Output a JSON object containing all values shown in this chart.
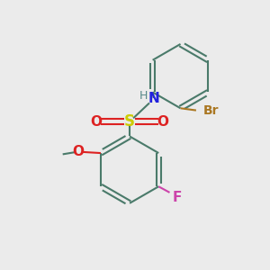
{
  "background_color": "#ebebeb",
  "bond_color": "#4a7a6a",
  "bond_width": 1.5,
  "atom_colors": {
    "S": "#cccc00",
    "O": "#dd2222",
    "N": "#2222dd",
    "H": "#558888",
    "Br": "#aa7722",
    "F": "#cc44aa",
    "C": "#4a7a6a"
  },
  "font_size_atoms": 11,
  "font_size_small": 9,
  "figsize": [
    3.0,
    3.0
  ],
  "dpi": 100,
  "xlim": [
    0,
    10
  ],
  "ylim": [
    0,
    10
  ]
}
